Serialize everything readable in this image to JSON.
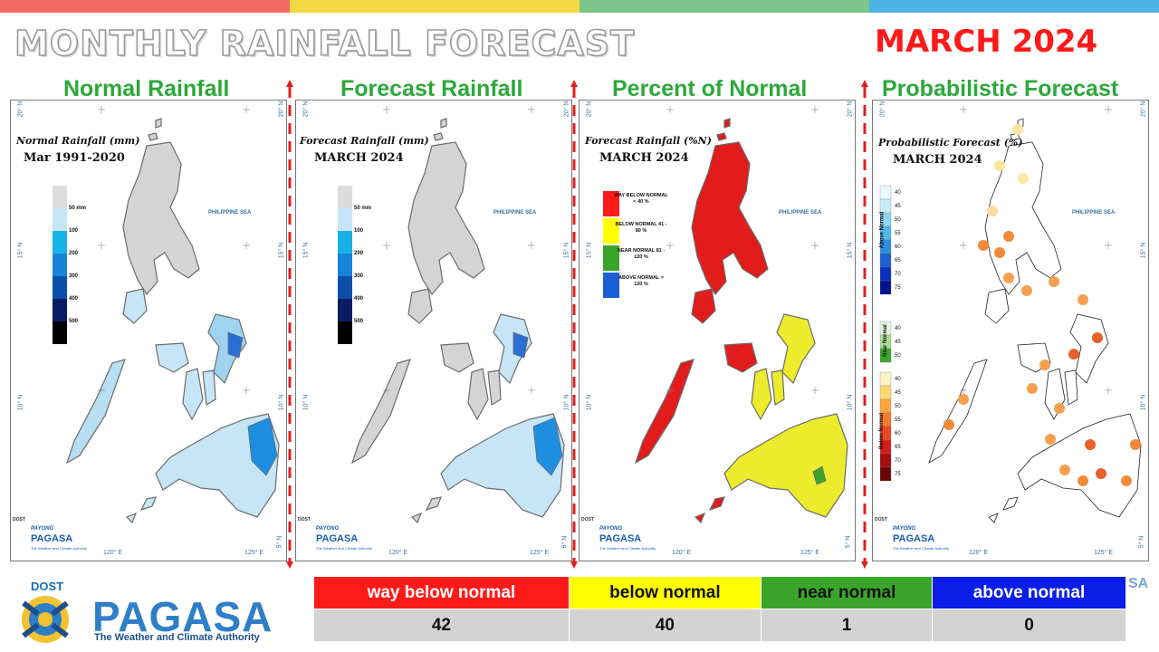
{
  "colors": {
    "top_stripes": [
      "#f06a63",
      "#f4d843",
      "#7dc58a",
      "#4fb3e6"
    ],
    "panel_title": "#2ca83a",
    "month_title": "#ff1a1a",
    "separator": "#e02020",
    "way_below_normal": "#ff1a1a",
    "below_normal": "#ffff00",
    "near_normal": "#3aa52a",
    "above_normal": "#0a1ee8"
  },
  "header": {
    "title": "MONTHLY RAINFALL FORECAST",
    "month": "MARCH 2024"
  },
  "panels": [
    {
      "title": "Normal Rainfall",
      "map_label": "Normal Rainfall (mm)",
      "period": "Mar 1991-2020",
      "sea_label": "PHILIPPINE SEA",
      "legend_ticks": [
        "50 mm",
        "100",
        "200",
        "300",
        "400",
        "500"
      ],
      "legend_colors": [
        "#dcdcdc",
        "#c6e6f7",
        "#17b2e8",
        "#1784d8",
        "#0b4fa8",
        "#0a1d63",
        "#000000"
      ]
    },
    {
      "title": "Forecast Rainfall",
      "map_label": "Forecast Rainfall (mm)",
      "period": "MARCH 2024",
      "sea_label": "PHILIPPINE SEA",
      "legend_ticks": [
        "50 mm",
        "100",
        "200",
        "300",
        "400",
        "500"
      ],
      "legend_colors": [
        "#dcdcdc",
        "#c6e6f7",
        "#17b2e8",
        "#1784d8",
        "#0b4fa8",
        "#0a1d63",
        "#000000"
      ]
    },
    {
      "title": "Percent of Normal",
      "map_label": "Forecast Rainfall (%N)",
      "period": "MARCH 2024",
      "sea_label": "PHILIPPINE SEA",
      "categories": [
        {
          "label": "WAY BELOW NORMAL < 40 %",
          "color": "#ff1a1a"
        },
        {
          "label": "BELOW NORMAL 41 - 80 %",
          "color": "#ffff00"
        },
        {
          "label": "NEAR NORMAL 81 - 120 %",
          "color": "#3aa52a"
        },
        {
          "label": "ABOVE NORMAL > 120 %",
          "color": "#1a5fd8"
        }
      ]
    },
    {
      "title": "Probabilistic Forecast",
      "map_label": "Probabilistic Forecast (%)",
      "period": "MARCH 2024",
      "sea_label": "PHILIPPINE SEA",
      "above_label": "Above Normal",
      "near_label": "Near Normal",
      "below_label": "Below Normal",
      "above_ticks": [
        "40",
        "45",
        "50",
        "55",
        "60",
        "65",
        "70",
        "75"
      ],
      "near_ticks": [
        "40",
        "45",
        "50"
      ],
      "below_ticks": [
        "40",
        "45",
        "50",
        "55",
        "60",
        "65",
        "70",
        "75"
      ]
    }
  ],
  "axis_labels": {
    "lat_20": "20° N",
    "lat_15": "15° N",
    "lat_10": "10° N",
    "lat_5": "5° N",
    "lon_120": "120° E",
    "lon_125": "125° E"
  },
  "branding": {
    "dost": "DOST",
    "payong": "PAYONG",
    "pagasa": "PAGASA",
    "tagline": "The Weather and Climate Authority"
  },
  "summary": {
    "headers": [
      "way below normal",
      "below normal",
      "near normal",
      "above normal"
    ],
    "values": [
      "42",
      "40",
      "1",
      "0"
    ],
    "text_colors": [
      "#ffffff",
      "#111111",
      "#111111",
      "#ffffff"
    ]
  },
  "edge_fragment": "SA"
}
